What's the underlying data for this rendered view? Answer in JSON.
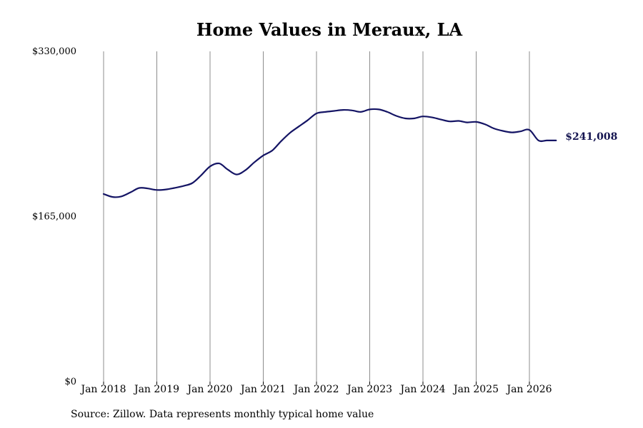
{
  "chart_data": {
    "type": "line",
    "title": "Home Values in Meraux, LA",
    "source": "Source: Zillow. Data represents monthly typical home value",
    "ylim": [
      0,
      330000
    ],
    "y_ticks": [
      {
        "value": 0,
        "label": "$0"
      },
      {
        "value": 165000,
        "label": "$165,000"
      },
      {
        "value": 330000,
        "label": "$330,000"
      }
    ],
    "x_ticks": [
      {
        "value": 2018,
        "label": "Jan 2018"
      },
      {
        "value": 2019,
        "label": "Jan 2019"
      },
      {
        "value": 2020,
        "label": "Jan 2020"
      },
      {
        "value": 2021,
        "label": "Jan 2021"
      },
      {
        "value": 2022,
        "label": "Jan 2022"
      },
      {
        "value": 2023,
        "label": "Jan 2023"
      },
      {
        "value": 2024,
        "label": "Jan 2024"
      },
      {
        "value": 2025,
        "label": "Jan 2025"
      },
      {
        "value": 2026,
        "label": "Jan 2026"
      }
    ],
    "xlim": [
      2017.9,
      2026.9
    ],
    "grid": "vertical",
    "line_color": "#141464",
    "end_label": "$241,008",
    "series": [
      {
        "x": [
          2018.0,
          2018.17,
          2018.33,
          2018.5,
          2018.67,
          2018.83,
          2019.0,
          2019.17,
          2019.33,
          2019.5,
          2019.67,
          2019.83,
          2020.0,
          2020.17,
          2020.33,
          2020.5,
          2020.67,
          2020.83,
          2021.0,
          2021.17,
          2021.33,
          2021.5,
          2021.67,
          2021.83,
          2022.0,
          2022.17,
          2022.33,
          2022.5,
          2022.67,
          2022.83,
          2023.0,
          2023.17,
          2023.33,
          2023.5,
          2023.67,
          2023.83,
          2024.0,
          2024.17,
          2024.33,
          2024.5,
          2024.67,
          2024.83,
          2025.0,
          2025.17,
          2025.33,
          2025.5,
          2025.67,
          2025.83,
          2026.0,
          2026.17,
          2026.33,
          2026.5
        ],
        "y": [
          187500,
          184500,
          185000,
          189000,
          193500,
          193000,
          191500,
          192000,
          193500,
          195500,
          198500,
          206000,
          215000,
          218000,
          212000,
          207000,
          211500,
          219000,
          226000,
          231000,
          240000,
          248500,
          255000,
          261000,
          268000,
          269500,
          270500,
          271500,
          271000,
          269500,
          272000,
          272000,
          269500,
          265500,
          263000,
          263000,
          265000,
          264000,
          262000,
          260000,
          260500,
          259000,
          259500,
          257000,
          253000,
          250500,
          249000,
          250000,
          251500,
          241008,
          241008,
          241008
        ]
      }
    ]
  }
}
